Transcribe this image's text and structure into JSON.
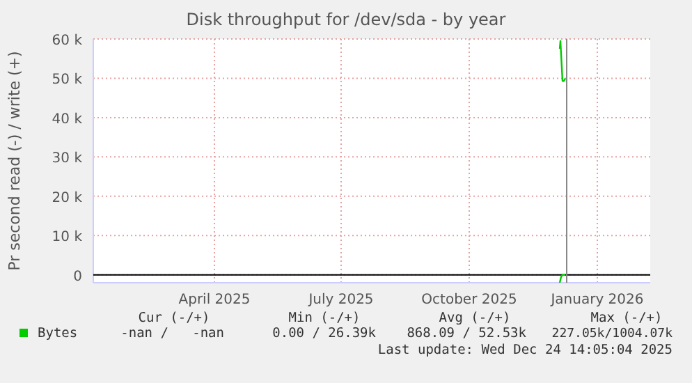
{
  "chart_data": {
    "type": "line",
    "title": "Disk throughput for /dev/sda - by year",
    "ylabel": "Pr second read (-) / write (+)",
    "xlim": [
      "2025-01-18",
      "2026-02-22"
    ],
    "xticks": [
      {
        "value": "2025-04-15",
        "label": "April 2025"
      },
      {
        "value": "2025-07-15",
        "label": "July 2025"
      },
      {
        "value": "2025-10-15",
        "label": "October 2025"
      },
      {
        "value": "2026-01-15",
        "label": "January 2026"
      }
    ],
    "ylim": [
      -2000,
      60000
    ],
    "yticks": [
      0,
      {
        "value": 10000,
        "label": "10 k"
      },
      {
        "value": 20000,
        "label": "20 k"
      },
      {
        "value": 30000,
        "label": "30 k"
      },
      {
        "value": 40000,
        "label": "40 k"
      },
      {
        "value": 50000,
        "label": "50 k"
      },
      {
        "value": 60000,
        "label": "60 k"
      }
    ],
    "grid": true,
    "legend": "bottom",
    "marker": "none",
    "line_style": "solid",
    "series": [
      {
        "name": "Bytes",
        "color": "#00cc00",
        "x": [
          "2025-12-19",
          "2025-12-19T12:00",
          "2025-12-21",
          "2025-12-22",
          "2025-12-23"
        ],
        "values": [
          57500,
          59500,
          49300,
          49300,
          50000
        ]
      },
      {
        "color": "#00cc00",
        "x": [
          "2025-12-19",
          "2025-12-20",
          "2025-12-21",
          "2025-12-23"
        ],
        "values": [
          -2000,
          -500,
          0,
          0
        ]
      }
    ],
    "ref_lines": [
      {
        "axis": "x",
        "value": "2025-12-24",
        "color": "#888888"
      }
    ],
    "annotations": [
      "Cur (-/+)",
      "Min (-/+)",
      "Avg (-/+)",
      "Max (-/+)",
      "-nan /   -nan",
      "0.00 / 26.39k",
      "868.09 / 52.53k",
      "227.05k/1004.07k",
      "Last update: Wed Dec 24 14:05:04 2025"
    ]
  }
}
